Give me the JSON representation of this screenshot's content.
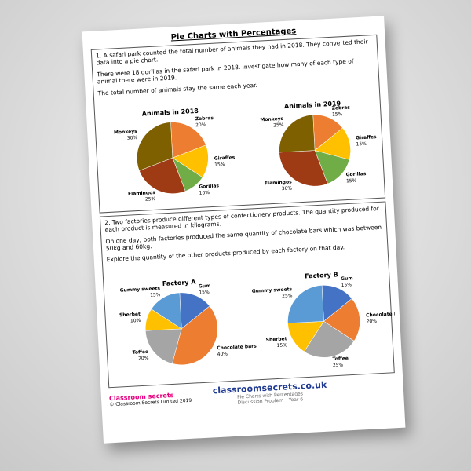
{
  "header": {
    "title": "Pie Charts with Percentages"
  },
  "question1": {
    "paragraphs": [
      "1. A safari park counted the total number of animals they had in 2018. They converted their data into a pie chart.",
      "There were 18 gorillas in the safari park in 2018. Investigate how many of each type of animal there were in 2019.",
      "The total number of animals stay the same each year."
    ],
    "charts": [
      {
        "type": "pie",
        "title": "Animals in 2018",
        "categories": [
          "Zebras",
          "Giraffes",
          "Gorillas",
          "Flamingos",
          "Monkeys"
        ],
        "values": [
          20,
          15,
          10,
          25,
          30
        ],
        "value_labels": [
          "20%",
          "15%",
          "10%",
          "25%",
          "30%"
        ],
        "colors": [
          "#ed7d31",
          "#ffc000",
          "#70ad47",
          "#9e3a14",
          "#7f6000"
        ]
      },
      {
        "type": "pie",
        "title": "Animals in 2019",
        "categories": [
          "Zebras",
          "Giraffes",
          "Gorillas",
          "Flamingos",
          "Monkeys"
        ],
        "values": [
          15,
          15,
          15,
          30,
          25
        ],
        "value_labels": [
          "15%",
          "15%",
          "15%",
          "30%",
          "25%"
        ],
        "colors": [
          "#ed7d31",
          "#ffc000",
          "#70ad47",
          "#9e3a14",
          "#7f6000"
        ]
      }
    ]
  },
  "question2": {
    "paragraphs": [
      "2. Two factories produce different types of confectionery products. The quantity produced for each product is measured in kilograms.",
      "On one day, both factories produced the same quantity of chocolate bars which was between 50kg and 60kg.",
      "Explore the quantity of the other products produced by each factory on that day."
    ],
    "charts": [
      {
        "type": "pie",
        "title": "Factory A",
        "categories": [
          "Gum",
          "Chocolate bars",
          "Toffee",
          "Sherbet",
          "Gummy sweets"
        ],
        "values": [
          15,
          40,
          20,
          10,
          15
        ],
        "value_labels": [
          "15%",
          "40%",
          "20%",
          "10%",
          "15%"
        ],
        "colors": [
          "#4472c4",
          "#ed7d31",
          "#a5a5a5",
          "#ffc000",
          "#5b9bd5"
        ]
      },
      {
        "type": "pie",
        "title": "Factory B",
        "categories": [
          "Gum",
          "Chocolate bars",
          "Toffee",
          "Sherbet",
          "Gummy sweets"
        ],
        "values": [
          15,
          20,
          25,
          15,
          25
        ],
        "value_labels": [
          "15%",
          "20%",
          "25%",
          "15%",
          "25%"
        ],
        "colors": [
          "#4472c4",
          "#ed7d31",
          "#a5a5a5",
          "#ffc000",
          "#5b9bd5"
        ]
      }
    ]
  },
  "footer": {
    "logo": "Classroom secrets",
    "url": "classroomsecrets.co.uk",
    "line1": "Pie Charts with Percentages",
    "line2": "Discussion Problem – Year 6",
    "copyright": "© Classroom Secrets Limited 2019"
  }
}
